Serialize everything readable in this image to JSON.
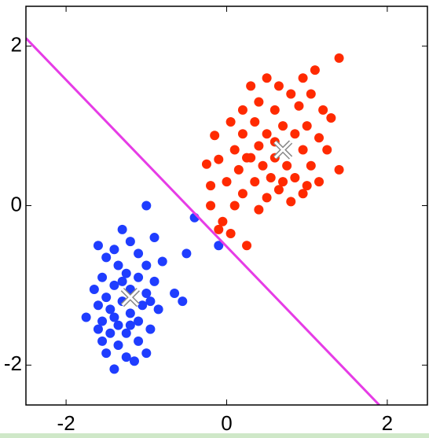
{
  "chart_data": {
    "type": "scatter",
    "xlim": [
      -2.5,
      2.5
    ],
    "ylim": [
      -2.5,
      2.5
    ],
    "xticks": [
      -2,
      0,
      2
    ],
    "yticks": [
      -2,
      0,
      2
    ],
    "series": [
      {
        "kind": "points",
        "color": "#ff2a00",
        "x": [
          1.4,
          1.1,
          0.95,
          0.5,
          0.65,
          0.3,
          0.8,
          1.05,
          0.4,
          0.2,
          0.6,
          0.9,
          1.2,
          0.05,
          0.35,
          0.7,
          1.0,
          1.3,
          -0.15,
          0.2,
          0.5,
          0.85,
          1.15,
          0.1,
          0.4,
          0.6,
          0.95,
          1.25,
          -0.1,
          0.25,
          0.45,
          0.75,
          1.05,
          1.4,
          -0.25,
          0.15,
          0.55,
          0.85,
          1.15,
          0.0,
          0.35,
          0.65,
          0.95,
          -0.2,
          0.2,
          0.5,
          0.8,
          -0.2,
          0.1,
          0.4,
          -0.05,
          0.05,
          0.25,
          -0.1,
          0.6,
          0.3,
          0.7,
          1.0
        ],
        "y": [
          1.85,
          1.7,
          1.6,
          1.6,
          1.5,
          1.5,
          1.4,
          1.4,
          1.3,
          1.2,
          1.2,
          1.25,
          1.2,
          1.05,
          1.05,
          1.0,
          1.0,
          1.1,
          0.88,
          0.9,
          0.9,
          0.9,
          0.85,
          0.7,
          0.75,
          0.6,
          0.7,
          0.7,
          0.58,
          0.6,
          0.5,
          0.5,
          0.5,
          0.45,
          0.52,
          0.45,
          0.35,
          0.35,
          0.3,
          0.3,
          0.3,
          0.2,
          0.15,
          0.25,
          0.15,
          0.1,
          0.05,
          0.0,
          0.0,
          -0.05,
          -0.2,
          -0.35,
          -0.5,
          -0.3,
          0.8,
          0.6,
          0.3,
          0.25
        ]
      },
      {
        "kind": "points",
        "color": "#1f3dff",
        "x": [
          -1.0,
          -0.4,
          -0.1,
          -0.5,
          -1.3,
          -1.6,
          -1.4,
          -1.2,
          -0.9,
          -1.1,
          -0.8,
          -1.5,
          -1.35,
          -1.0,
          -1.25,
          -1.55,
          -1.1,
          -0.9,
          -1.4,
          -1.2,
          -1.0,
          -0.65,
          -0.55,
          -1.5,
          -1.3,
          -1.05,
          -1.45,
          -1.2,
          -0.85,
          -1.75,
          -1.55,
          -1.35,
          -1.1,
          -0.95,
          -1.45,
          -1.25,
          -1.55,
          -1.35,
          -1.1,
          -1.5,
          -1.25,
          -1.0,
          -1.4,
          -1.15,
          -1.6,
          -1.65,
          -1.3,
          -0.95,
          -1.4,
          -1.2,
          -1.6
        ],
        "y": [
          0.0,
          -0.15,
          -0.5,
          -0.6,
          -0.3,
          -0.5,
          -0.55,
          -0.45,
          -0.4,
          -0.6,
          -0.7,
          -0.65,
          -0.75,
          -0.75,
          -0.85,
          -0.9,
          -0.9,
          -0.95,
          -1.0,
          -1.05,
          -1.1,
          -1.1,
          -1.2,
          -1.15,
          -1.2,
          -1.25,
          -1.3,
          -1.35,
          -1.3,
          -1.4,
          -1.45,
          -1.5,
          -1.45,
          -1.55,
          -1.6,
          -1.6,
          -1.7,
          -1.75,
          -1.7,
          -1.85,
          -1.9,
          -1.85,
          -2.05,
          -1.95,
          -1.25,
          -1.05,
          -0.95,
          -1.2,
          -1.4,
          -1.5,
          -1.55
        ]
      },
      {
        "kind": "line",
        "color": "#e63ce6",
        "x": [
          -2.5,
          1.9
        ],
        "y": [
          2.1,
          -2.5
        ]
      },
      {
        "kind": "cross",
        "color": "#ffffff",
        "x": [
          0.7,
          -1.2
        ],
        "y": [
          0.7,
          -1.15
        ]
      }
    ]
  }
}
